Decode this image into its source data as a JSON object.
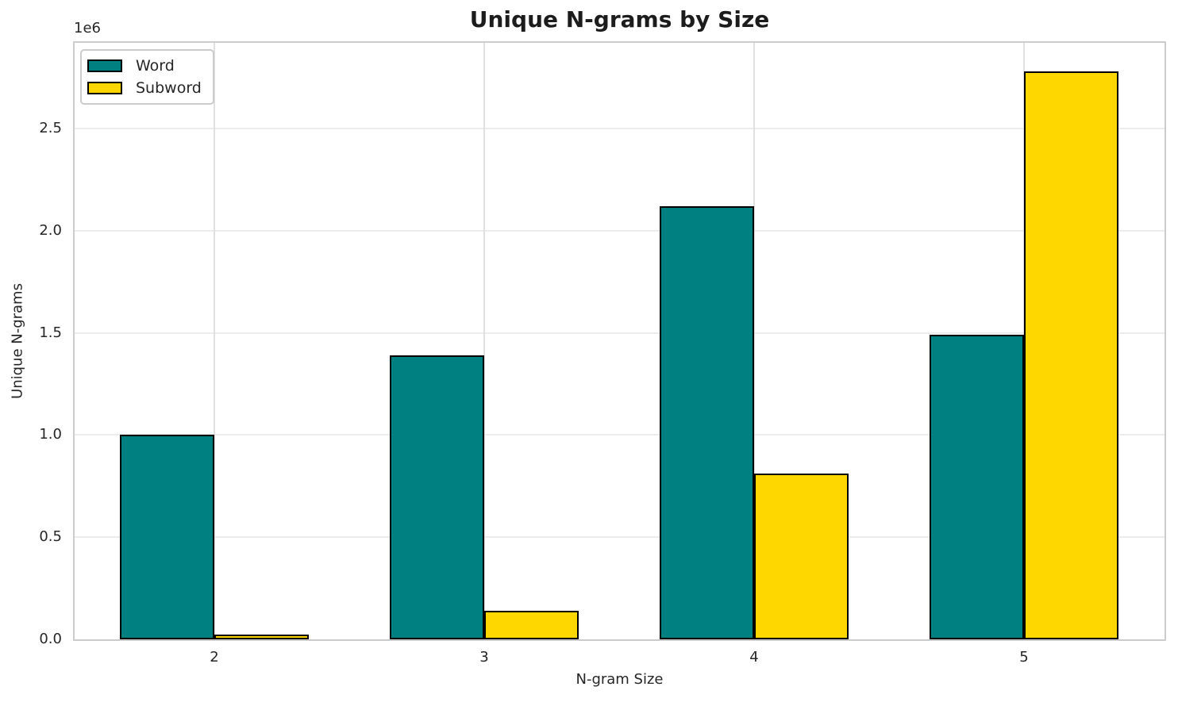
{
  "figure": {
    "title": "Unique N-grams by Size",
    "y_offset_text": "1e6",
    "xlabel": "N-gram Size",
    "ylabel": "Unique N-grams"
  },
  "legend": {
    "items": [
      {
        "label": "Word",
        "color": "#008080"
      },
      {
        "label": "Subword",
        "color": "#FFD700"
      }
    ]
  },
  "colors": {
    "word_bar": "#008080",
    "subword_bar": "#FFD700",
    "bar_edge": "#000000",
    "spine": "#cccccc",
    "grid": "#e6e6e6",
    "text": "#262626",
    "background": "#ffffff"
  },
  "chart_data": {
    "type": "bar",
    "title": "Unique N-grams by Size",
    "xlabel": "N-gram Size",
    "ylabel": "Unique N-grams",
    "categories": [
      "2",
      "3",
      "4",
      "5"
    ],
    "series": [
      {
        "name": "Word",
        "color": "#008080",
        "values": [
          1000000,
          1390000,
          2120000,
          1490000
        ]
      },
      {
        "name": "Subword",
        "color": "#FFD700",
        "values": [
          25000,
          140000,
          810000,
          2780000
        ]
      }
    ],
    "ylim": [
      0,
      2920000
    ],
    "yticks": [
      0,
      500000,
      1000000,
      1500000,
      2000000,
      2500000
    ],
    "ytick_labels": [
      "0.0",
      "0.5",
      "1.0",
      "1.5",
      "2.0",
      "2.5"
    ],
    "y_scale_note": "1e6",
    "grid": true,
    "bar_edge_color": "#000000",
    "legend_position": "upper left"
  }
}
